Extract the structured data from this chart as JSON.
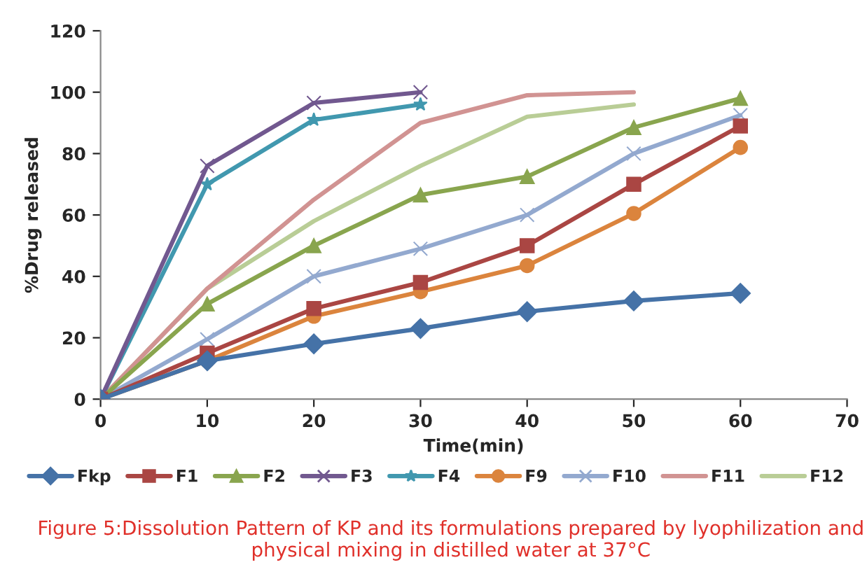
{
  "chart_data": {
    "type": "line",
    "xlabel": "Time(min)",
    "ylabel": "%Drug released",
    "xlim": [
      0,
      70
    ],
    "xticks": [
      0,
      10,
      20,
      30,
      40,
      50,
      60,
      70
    ],
    "ylim": [
      0,
      120
    ],
    "yticks": [
      0,
      20,
      40,
      60,
      80,
      100,
      120
    ],
    "grid": false,
    "legend": "bottom",
    "line_style": "solid",
    "series": [
      {
        "name": "Fkp",
        "color": "#4572a7",
        "marker": "diamond",
        "x": [
          0,
          10,
          20,
          30,
          40,
          50,
          60
        ],
        "values": [
          0,
          12.5,
          18,
          23,
          28.5,
          32,
          34.5
        ]
      },
      {
        "name": "F1",
        "color": "#aa4643",
        "marker": "square",
        "x": [
          0,
          10,
          20,
          30,
          40,
          50,
          60
        ],
        "values": [
          0,
          15,
          29.5,
          38,
          50,
          70,
          89
        ]
      },
      {
        "name": "F2",
        "color": "#89a54e",
        "marker": "triangle",
        "x": [
          0,
          10,
          20,
          30,
          40,
          50,
          60
        ],
        "values": [
          0,
          31,
          50,
          66.5,
          72.5,
          88.5,
          98
        ]
      },
      {
        "name": "F3",
        "color": "#71588f",
        "marker": "cross",
        "x": [
          0,
          10,
          20,
          30
        ],
        "values": [
          0,
          76,
          96.5,
          100
        ]
      },
      {
        "name": "F4",
        "color": "#4198af",
        "marker": "star",
        "x": [
          0,
          10,
          20,
          30
        ],
        "values": [
          0,
          70,
          91,
          96
        ]
      },
      {
        "name": "F9",
        "color": "#db843d",
        "marker": "circle",
        "x": [
          0,
          10,
          20,
          30,
          40,
          50,
          60
        ],
        "values": [
          0,
          12.5,
          27,
          35,
          43.5,
          60.5,
          82
        ]
      },
      {
        "name": "F10",
        "color": "#93a9cf",
        "marker": "cross",
        "x": [
          0,
          10,
          20,
          30,
          40,
          50,
          60
        ],
        "values": [
          0,
          19.5,
          40,
          49,
          60,
          80,
          92.5
        ]
      },
      {
        "name": "F11",
        "color": "#d19392",
        "marker": "none",
        "x": [
          0,
          10,
          20,
          30,
          40,
          50
        ],
        "values": [
          0,
          36,
          65,
          90,
          99,
          100
        ]
      },
      {
        "name": "F12",
        "color": "#b9cd96",
        "marker": "none",
        "x": [
          0,
          10,
          20,
          30,
          40,
          50
        ],
        "values": [
          0,
          36,
          58,
          76,
          92,
          96
        ]
      }
    ],
    "annotations": [
      "Figure 5:Dissolution Pattern of KP and its formulations prepared by lyophilization and physical mixing in distilled water at 37°C"
    ]
  }
}
